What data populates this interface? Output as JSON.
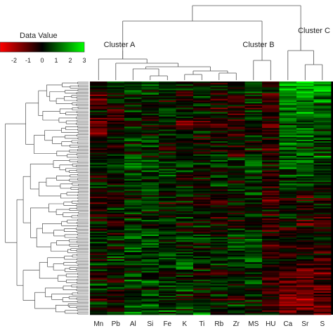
{
  "chart_data": {
    "type": "heatmap",
    "legend": {
      "title": "Data Value",
      "ticks": [
        "-2",
        "-1",
        "0",
        "1",
        "2",
        "3"
      ],
      "range": [
        -3,
        3
      ],
      "colors": {
        "low": "#ff0000",
        "mid": "#000000",
        "high": "#00ff00"
      }
    },
    "columns": [
      "Mn",
      "Pb",
      "Al",
      "Si",
      "Fe",
      "K",
      "Ti",
      "Rb",
      "Zr",
      "MS",
      "HU",
      "Ca",
      "Sr",
      "S"
    ],
    "clusters": [
      {
        "label": "Cluster A",
        "members": [
          "Mn",
          "Pb",
          "Al",
          "Si",
          "Fe",
          "K",
          "Ti",
          "Rb",
          "Zr"
        ]
      },
      {
        "label": "Cluster B",
        "members": [
          "MS",
          "HU"
        ]
      },
      {
        "label": "Cluster C",
        "members": [
          "Ca",
          "Sr",
          "S"
        ]
      }
    ],
    "row_count": 160,
    "column_profiles": [
      {
        "column": "Mn",
        "top_mean": -0.6,
        "bottom_mean": 0.4
      },
      {
        "column": "Pb",
        "top_mean": -0.2,
        "bottom_mean": 0.3
      },
      {
        "column": "Al",
        "top_mean": 0.1,
        "bottom_mean": 0.9
      },
      {
        "column": "Si",
        "top_mean": 0.3,
        "bottom_mean": 0.8
      },
      {
        "column": "Fe",
        "top_mean": 0.2,
        "bottom_mean": 0.6
      },
      {
        "column": "K",
        "top_mean": -0.1,
        "bottom_mean": 0.6
      },
      {
        "column": "Ti",
        "top_mean": -0.2,
        "bottom_mean": 0.5
      },
      {
        "column": "Rb",
        "top_mean": -0.2,
        "bottom_mean": 0.4
      },
      {
        "column": "Zr",
        "top_mean": -0.3,
        "bottom_mean": 0.4
      },
      {
        "column": "MS",
        "top_mean": 0.3,
        "bottom_mean": 0.5
      },
      {
        "column": "HU",
        "top_mean": -0.4,
        "bottom_mean": -0.6
      },
      {
        "column": "Ca",
        "top_mean": 1.8,
        "bottom_mean": -1.2
      },
      {
        "column": "Sr",
        "top_mean": 2.0,
        "bottom_mean": -1.5
      },
      {
        "column": "S",
        "top_mean": 1.6,
        "bottom_mean": -1.3
      }
    ]
  }
}
